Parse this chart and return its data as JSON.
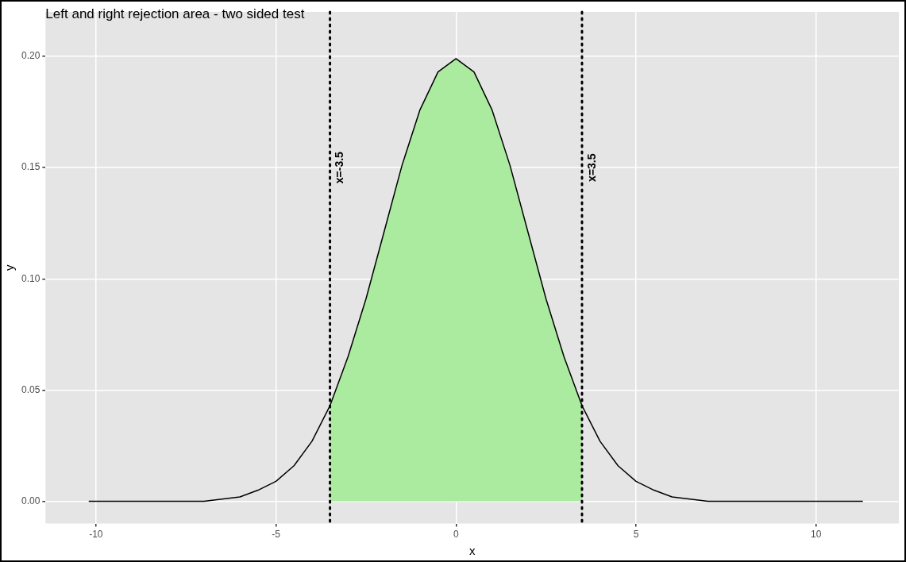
{
  "chart_data": {
    "type": "line",
    "title": "Left and right rejection area - two sided test",
    "xlabel": "x",
    "ylabel": "y",
    "series": [
      {
        "type": "area",
        "color": "#abeba0",
        "x": [
          -3.5,
          -3,
          -2.5,
          -2,
          -1.5,
          -1,
          -0.5,
          0,
          0.5,
          1,
          1.5,
          2,
          2.5,
          3,
          3.5
        ],
        "values": [
          0.043,
          0.065,
          0.091,
          0.121,
          0.151,
          0.176,
          0.193,
          0.199,
          0.193,
          0.176,
          0.151,
          0.121,
          0.091,
          0.065,
          0.043
        ]
      },
      {
        "type": "line",
        "color": "#000000",
        "x": [
          -10.2,
          -9,
          -8,
          -7,
          -6.5,
          -6,
          -5.5,
          -5,
          -4.5,
          -4,
          -3.5,
          -3,
          -2.5,
          -2,
          -1.5,
          -1,
          -0.5,
          0,
          0.5,
          1,
          1.5,
          2,
          2.5,
          3,
          3.5,
          4,
          4.5,
          5,
          5.5,
          6,
          6.5,
          7,
          8,
          9,
          10,
          11.3
        ],
        "values": [
          0,
          0,
          0,
          0,
          0.001,
          0.002,
          0.005,
          0.009,
          0.016,
          0.027,
          0.043,
          0.065,
          0.091,
          0.121,
          0.151,
          0.176,
          0.193,
          0.199,
          0.193,
          0.176,
          0.151,
          0.121,
          0.091,
          0.065,
          0.043,
          0.027,
          0.016,
          0.009,
          0.005,
          0.002,
          0.001,
          0,
          0,
          0,
          0,
          0
        ]
      }
    ],
    "xlim": [
      -11.4,
      12.3
    ],
    "ylim": [
      -0.01,
      0.22
    ],
    "xticks": [
      -10,
      -5,
      0,
      5,
      10
    ],
    "yticks": [
      {
        "value": 0,
        "label": "0.00"
      },
      {
        "value": 0.05,
        "label": "0.05"
      },
      {
        "value": 0.1,
        "label": "0.10"
      },
      {
        "value": 0.15,
        "label": "0.15"
      },
      {
        "value": 0.2,
        "label": "0.20"
      }
    ],
    "ref_lines": [
      {
        "axis": "x",
        "value": -3.5,
        "label": "x=-3.5",
        "color": "#000000",
        "line_style": "dotted"
      },
      {
        "axis": "x",
        "value": 3.5,
        "label": "x=3.5",
        "color": "#000000",
        "line_style": "dotted"
      }
    ],
    "grid": true,
    "legend": false,
    "marker": "none"
  }
}
